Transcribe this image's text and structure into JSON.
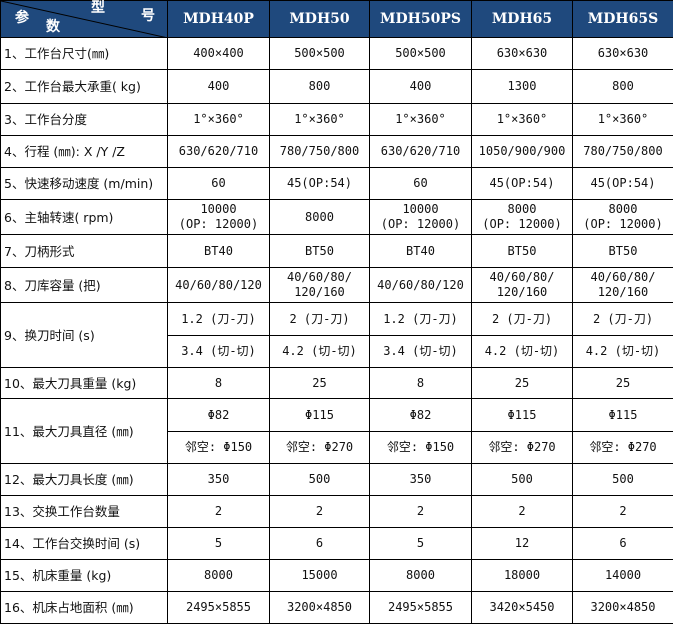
{
  "header": {
    "corner": {
      "model": "型",
      "number": "号",
      "param": "参",
      "count": "数"
    },
    "models": [
      "MDH40P",
      "MDH50",
      "MDH50PS",
      "MDH65",
      "MDH65S"
    ]
  },
  "colors": {
    "header_bg": "#1f497d",
    "header_text": "#ffffff"
  },
  "rows": [
    {
      "label": "1、工作台尺寸(㎜)",
      "values": [
        "400×400",
        "500×500",
        "500×500",
        "630×630",
        "630×630"
      ]
    },
    {
      "label": "2、工作台最大承重( kg)",
      "values": [
        "400",
        "800",
        "400",
        "1300",
        "800"
      ]
    },
    {
      "label": "3、工作台分度",
      "values": [
        "1°×360°",
        "1°×360°",
        "1°×360°",
        "1°×360°",
        "1°×360°"
      ]
    },
    {
      "label": "4、行程 (㎜): X /Y /Z",
      "values": [
        "630/620/710",
        "780/750/800",
        "630/620/710",
        "1050/900/900",
        "780/750/800"
      ]
    },
    {
      "label": "5、快速移动速度 (m/min)",
      "values": [
        "60",
        "45(OP:54)",
        "60",
        "45(OP:54)",
        "45(OP:54)"
      ]
    },
    {
      "label": "6、主轴转速( rpm)",
      "values": [
        "10000\n(OP: 12000)",
        "8000",
        "10000\n(OP: 12000)",
        "8000\n(OP: 12000)",
        "8000\n(OP: 12000)"
      ]
    },
    {
      "label": "7、刀柄形式",
      "values": [
        "BT40",
        "BT50",
        "BT40",
        "BT50",
        "BT50"
      ]
    },
    {
      "label": "8、刀库容量 (把)",
      "values": [
        "40/60/80/120",
        "40/60/80/\n120/160",
        "40/60/80/120",
        "40/60/80/\n120/160",
        "40/60/80/\n120/160"
      ]
    },
    {
      "label": "9、换刀时间 (s)",
      "values": [
        "1.2 (刀-刀)",
        "2 (刀-刀)",
        "1.2 (刀-刀)",
        "2 (刀-刀)",
        "2 (刀-刀)"
      ],
      "values2": [
        "3.4 (切-切)",
        "4.2 (切-切)",
        "3.4 (切-切)",
        "4.2 (切-切)",
        "4.2 (切-切)"
      ]
    },
    {
      "label": "10、最大刀具重量 (kg)",
      "values": [
        "8",
        "25",
        "8",
        "25",
        "25"
      ]
    },
    {
      "label": "11、最大刀具直径 (㎜)",
      "values": [
        "Φ82",
        "Φ115",
        "Φ82",
        "Φ115",
        "Φ115"
      ],
      "values2": [
        "邻空: Φ150",
        "邻空: Φ270",
        "邻空: Φ150",
        "邻空: Φ270",
        "邻空: Φ270"
      ]
    },
    {
      "label": "12、最大刀具长度 (㎜)",
      "values": [
        "350",
        "500",
        "350",
        "500",
        "500"
      ]
    },
    {
      "label": "13、交换工作台数量",
      "values": [
        "2",
        "2",
        "2",
        "2",
        "2"
      ]
    },
    {
      "label": "14、工作台交换时间 (s)",
      "values": [
        "5",
        "6",
        "5",
        "12",
        "6"
      ]
    },
    {
      "label": "15、机床重量 (kg)",
      "values": [
        "8000",
        "15000",
        "8000",
        "18000",
        "14000"
      ]
    },
    {
      "label": "16、机床占地面积 (㎜)",
      "values": [
        "2495×5855",
        "3200×4850",
        "2495×5855",
        "3420×5450",
        "3200×4850"
      ]
    }
  ]
}
